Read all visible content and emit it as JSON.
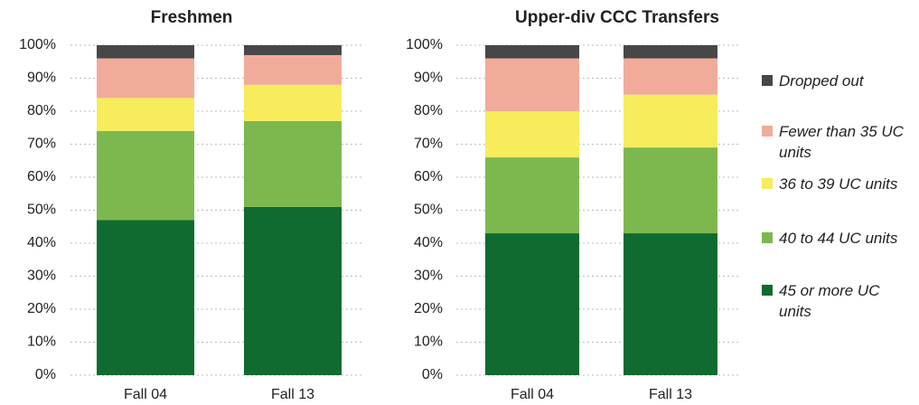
{
  "chart_data": [
    {
      "type": "bar",
      "stacked": true,
      "title": "Freshmen",
      "categories": [
        "Fall 04",
        "Fall 13"
      ],
      "series": [
        {
          "name": "45 or more UC units",
          "color": "#0f6b2f",
          "values": [
            47,
            51
          ]
        },
        {
          "name": "40 to 44 UC units",
          "color": "#7db84e",
          "values": [
            27,
            26
          ]
        },
        {
          "name": "36 to 39 UC units",
          "color": "#f6ec5c",
          "values": [
            10,
            11
          ]
        },
        {
          "name": "Fewer than 35 UC units",
          "color": "#f1ab9b",
          "values": [
            12,
            9
          ]
        },
        {
          "name": "Dropped out",
          "color": "#474747",
          "values": [
            4,
            3
          ]
        }
      ],
      "ylim": [
        0,
        100
      ],
      "yticks": [
        {
          "value": 0,
          "label": "0%"
        },
        {
          "value": 10,
          "label": "10%"
        },
        {
          "value": 20,
          "label": "20%"
        },
        {
          "value": 30,
          "label": "30%"
        },
        {
          "value": 40,
          "label": "40%"
        },
        {
          "value": 50,
          "label": "50%"
        },
        {
          "value": 60,
          "label": "60%"
        },
        {
          "value": 70,
          "label": "70%"
        },
        {
          "value": 80,
          "label": "80%"
        },
        {
          "value": 90,
          "label": "90%"
        },
        {
          "value": 100,
          "label": "100%"
        }
      ],
      "grid": true,
      "legend": "right"
    },
    {
      "type": "bar",
      "stacked": true,
      "title": "Upper-div CCC Transfers",
      "categories": [
        "Fall 04",
        "Fall 13"
      ],
      "series": [
        {
          "color": "#0f6b2f",
          "values": [
            43,
            43
          ]
        },
        {
          "color": "#7db84e",
          "values": [
            23,
            26
          ]
        },
        {
          "color": "#f6ec5c",
          "values": [
            14,
            16
          ]
        },
        {
          "color": "#f1ab9b",
          "values": [
            16,
            11
          ]
        },
        {
          "color": "#474747",
          "values": [
            4,
            4
          ]
        }
      ],
      "ylim": [
        0,
        100
      ],
      "yticks": [
        {
          "value": 0,
          "label": "0%"
        },
        {
          "value": 10,
          "label": "10%"
        },
        {
          "value": 20,
          "label": "20%"
        },
        {
          "value": 30,
          "label": "30%"
        },
        {
          "value": 40,
          "label": "40%"
        },
        {
          "value": 50,
          "label": "50%"
        },
        {
          "value": 60,
          "label": "60%"
        },
        {
          "value": 70,
          "label": "70%"
        },
        {
          "value": 80,
          "label": "80%"
        },
        {
          "value": 90,
          "label": "90%"
        },
        {
          "value": 100,
          "label": "100%"
        }
      ],
      "grid": true
    }
  ]
}
